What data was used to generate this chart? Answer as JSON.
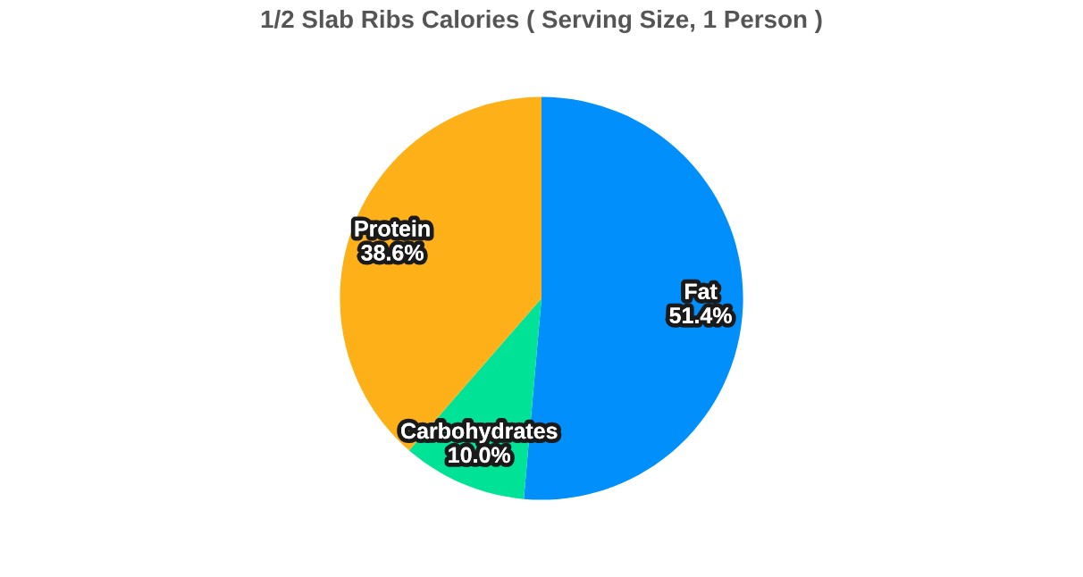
{
  "chart_data": {
    "type": "pie",
    "title": "1/2 Slab Ribs Calories ( Serving Size, 1 Person )",
    "categories": [
      "Fat",
      "Carbohydrates",
      "Protein"
    ],
    "values": [
      51.4,
      10.0,
      38.6
    ],
    "colors": [
      "#008ffb",
      "#00e396",
      "#feb019"
    ],
    "value_labels": [
      "51.4%",
      "10.0%",
      "38.6%"
    ],
    "legend": false
  }
}
